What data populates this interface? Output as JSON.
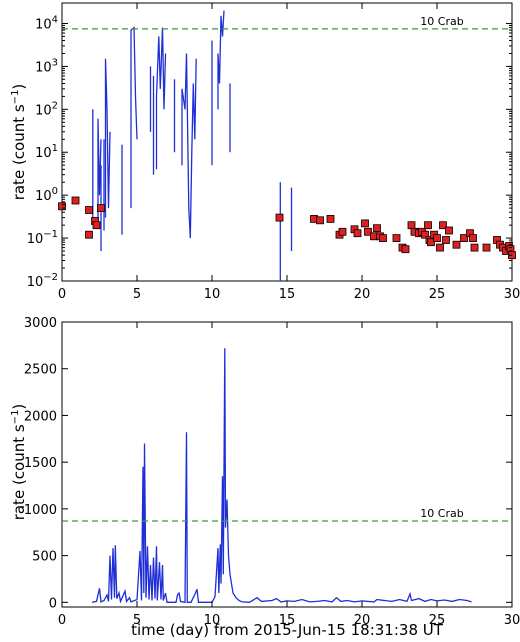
{
  "chart_data": [
    {
      "type": "line",
      "panel": "top",
      "yscale": "log",
      "xlim": [
        0,
        30
      ],
      "ylim": [
        0.01,
        30000
      ],
      "xticks": [
        "0",
        "5",
        "10",
        "15",
        "20",
        "25",
        "30"
      ],
      "ylabel_main": "rate (count s",
      "ylabel_sup": "−1",
      "ylabel_end": ")",
      "reference_line": {
        "label": "10 Crab",
        "y": 7500,
        "color": "#3a9a3a"
      },
      "series_colors": {
        "line": "#1f2fd6",
        "marker_fill": "#e02020",
        "marker_edge": "#000000"
      },
      "line_segments": [
        [
          [
            2.05,
            0.25
          ],
          [
            2.05,
            100
          ]
        ],
        [
          [
            2.4,
            0.2
          ],
          [
            2.4,
            60
          ],
          [
            2.5,
            1.0
          ],
          [
            2.6,
            20
          ]
        ],
        [
          [
            2.6,
            0.05
          ],
          [
            2.6,
            5
          ]
        ],
        [
          [
            2.8,
            0.15
          ],
          [
            2.8,
            20
          ]
        ],
        [
          [
            2.9,
            0.3
          ],
          [
            2.9,
            1500
          ],
          [
            3.0,
            100
          ],
          [
            3.1,
            0.5
          ],
          [
            3.2,
            30
          ]
        ],
        [
          [
            4.0,
            0.12
          ],
          [
            4.0,
            15
          ]
        ],
        [
          [
            4.6,
            0.5
          ],
          [
            4.6,
            7000
          ],
          [
            4.8,
            8000
          ],
          [
            4.9,
            200
          ],
          [
            5.0,
            20
          ]
        ],
        [
          [
            5.9,
            30
          ],
          [
            5.9,
            1000
          ]
        ],
        [
          [
            6.1,
            3
          ],
          [
            6.1,
            600
          ]
        ],
        [
          [
            6.3,
            4
          ],
          [
            6.3,
            200
          ],
          [
            6.45,
            5000
          ],
          [
            6.55,
            300
          ],
          [
            6.7,
            8000
          ],
          [
            6.8,
            100
          ],
          [
            6.9,
            2000
          ]
        ],
        [
          [
            7.5,
            10
          ],
          [
            7.5,
            500
          ]
        ],
        [
          [
            8.0,
            5
          ],
          [
            8.0,
            300
          ],
          [
            8.2,
            100
          ],
          [
            8.3,
            2000
          ],
          [
            8.45,
            0.5
          ],
          [
            8.55,
            0.1
          ],
          [
            8.65,
            10
          ],
          [
            8.75,
            400
          ],
          [
            8.85,
            20
          ],
          [
            8.95,
            1500
          ]
        ],
        [
          [
            10.0,
            5
          ],
          [
            10.0,
            4000
          ]
        ],
        [
          [
            10.4,
            100
          ],
          [
            10.4,
            2000
          ],
          [
            10.5,
            400
          ],
          [
            10.6,
            15000
          ],
          [
            10.7,
            5000
          ],
          [
            10.8,
            20000
          ]
        ],
        [
          [
            11.2,
            10
          ],
          [
            11.2,
            400
          ]
        ],
        [
          [
            14.55,
            0.01
          ],
          [
            14.55,
            2
          ]
        ],
        [
          [
            15.3,
            0.05
          ],
          [
            15.3,
            1.5
          ]
        ]
      ],
      "markers": [
        [
          0.0,
          0.55
        ],
        [
          0.9,
          0.75
        ],
        [
          1.8,
          0.45
        ],
        [
          1.8,
          0.12
        ],
        [
          2.2,
          0.25
        ],
        [
          2.3,
          0.2
        ],
        [
          2.6,
          0.5
        ],
        [
          14.5,
          0.3
        ],
        [
          16.8,
          0.28
        ],
        [
          17.2,
          0.26
        ],
        [
          17.9,
          0.28
        ],
        [
          18.5,
          0.12
        ],
        [
          18.7,
          0.14
        ],
        [
          19.5,
          0.16
        ],
        [
          19.7,
          0.13
        ],
        [
          20.2,
          0.22
        ],
        [
          20.4,
          0.14
        ],
        [
          20.8,
          0.11
        ],
        [
          21.0,
          0.17
        ],
        [
          21.2,
          0.11
        ],
        [
          21.4,
          0.1
        ],
        [
          22.3,
          0.1
        ],
        [
          22.7,
          0.06
        ],
        [
          22.9,
          0.055
        ],
        [
          23.3,
          0.2
        ],
        [
          23.5,
          0.14
        ],
        [
          23.8,
          0.13
        ],
        [
          24.0,
          0.14
        ],
        [
          24.2,
          0.12
        ],
        [
          24.4,
          0.2
        ],
        [
          24.5,
          0.09
        ],
        [
          24.6,
          0.08
        ],
        [
          24.8,
          0.12
        ],
        [
          25.0,
          0.1
        ],
        [
          25.2,
          0.06
        ],
        [
          25.4,
          0.2
        ],
        [
          25.6,
          0.09
        ],
        [
          25.8,
          0.15
        ],
        [
          26.3,
          0.07
        ],
        [
          26.8,
          0.1
        ],
        [
          27.2,
          0.13
        ],
        [
          27.4,
          0.1
        ],
        [
          27.5,
          0.06
        ],
        [
          28.3,
          0.06
        ],
        [
          29.0,
          0.09
        ],
        [
          29.2,
          0.07
        ],
        [
          29.4,
          0.06
        ],
        [
          29.6,
          0.05
        ],
        [
          29.8,
          0.065
        ],
        [
          29.9,
          0.055
        ],
        [
          30.0,
          0.04
        ]
      ]
    },
    {
      "type": "line",
      "panel": "bottom",
      "yscale": "linear",
      "xlim": [
        0,
        30
      ],
      "ylim": [
        -50,
        3000
      ],
      "xticks": [
        "0",
        "5",
        "10",
        "15",
        "20",
        "25",
        "30"
      ],
      "yticks": [
        "0",
        "500",
        "1000",
        "1500",
        "2000",
        "2500",
        "3000"
      ],
      "ylabel_main": "rate (count s",
      "ylabel_sup": "−1",
      "ylabel_end": ")",
      "xlabel": "time (day) from 2015-Jun-15 18:31:38 UT",
      "reference_line": {
        "label": "10 Crab",
        "y": 870,
        "color": "#3a9a3a"
      },
      "series_colors": {
        "line": "#1f2fd6"
      },
      "line_points": [
        [
          2.0,
          0
        ],
        [
          2.3,
          10
        ],
        [
          2.5,
          150
        ],
        [
          2.6,
          5
        ],
        [
          2.8,
          20
        ],
        [
          3.0,
          80
        ],
        [
          3.1,
          10
        ],
        [
          3.2,
          500
        ],
        [
          3.3,
          30
        ],
        [
          3.4,
          580
        ],
        [
          3.5,
          50
        ],
        [
          3.55,
          610
        ],
        [
          3.65,
          40
        ],
        [
          3.8,
          100
        ],
        [
          3.9,
          10
        ],
        [
          4.2,
          120
        ],
        [
          4.3,
          10
        ],
        [
          4.5,
          50
        ],
        [
          4.6,
          5
        ],
        [
          5.0,
          30
        ],
        [
          5.2,
          550
        ],
        [
          5.3,
          20
        ],
        [
          5.4,
          1450
        ],
        [
          5.45,
          100
        ],
        [
          5.5,
          1700
        ],
        [
          5.6,
          50
        ],
        [
          5.7,
          600
        ],
        [
          5.8,
          30
        ],
        [
          5.9,
          400
        ],
        [
          6.0,
          20
        ],
        [
          6.1,
          480
        ],
        [
          6.2,
          40
        ],
        [
          6.3,
          600
        ],
        [
          6.35,
          20
        ],
        [
          6.5,
          430
        ],
        [
          6.6,
          30
        ],
        [
          6.7,
          400
        ],
        [
          6.75,
          20
        ],
        [
          6.9,
          100
        ],
        [
          7.0,
          0
        ],
        [
          7.6,
          0
        ],
        [
          7.7,
          80
        ],
        [
          7.8,
          100
        ],
        [
          7.9,
          10
        ],
        [
          8.2,
          0
        ],
        [
          8.3,
          1820
        ],
        [
          8.35,
          0
        ],
        [
          8.6,
          0
        ],
        [
          8.9,
          100
        ],
        [
          9.0,
          140
        ],
        [
          9.1,
          0
        ],
        [
          10.0,
          0
        ],
        [
          10.2,
          60
        ],
        [
          10.4,
          580
        ],
        [
          10.45,
          100
        ],
        [
          10.55,
          620
        ],
        [
          10.6,
          200
        ],
        [
          10.7,
          1350
        ],
        [
          10.75,
          300
        ],
        [
          10.85,
          2720
        ],
        [
          10.9,
          800
        ],
        [
          11.0,
          1100
        ],
        [
          11.1,
          500
        ],
        [
          11.2,
          300
        ],
        [
          11.4,
          100
        ],
        [
          11.6,
          50
        ],
        [
          11.8,
          20
        ],
        [
          12.0,
          5
        ],
        [
          12.5,
          0
        ],
        [
          13.0,
          50
        ],
        [
          13.3,
          10
        ],
        [
          14.0,
          20
        ],
        [
          14.3,
          40
        ],
        [
          14.6,
          5
        ],
        [
          15.0,
          15
        ],
        [
          15.5,
          10
        ],
        [
          16.0,
          30
        ],
        [
          16.5,
          5
        ],
        [
          17.0,
          10
        ],
        [
          17.5,
          20
        ],
        [
          18.0,
          5
        ],
        [
          18.3,
          50
        ],
        [
          18.6,
          10
        ],
        [
          19.0,
          20
        ],
        [
          19.5,
          5
        ],
        [
          20.0,
          15
        ],
        [
          20.8,
          5
        ],
        [
          21.0,
          30
        ],
        [
          21.5,
          20
        ],
        [
          22.0,
          10
        ],
        [
          22.5,
          30
        ],
        [
          23.0,
          10
        ],
        [
          23.2,
          90
        ],
        [
          23.3,
          20
        ],
        [
          23.8,
          40
        ],
        [
          24.2,
          10
        ],
        [
          24.6,
          30
        ],
        [
          25.0,
          15
        ],
        [
          25.5,
          25
        ],
        [
          26.0,
          10
        ],
        [
          26.5,
          30
        ],
        [
          27.0,
          20
        ],
        [
          27.3,
          5
        ]
      ]
    }
  ]
}
